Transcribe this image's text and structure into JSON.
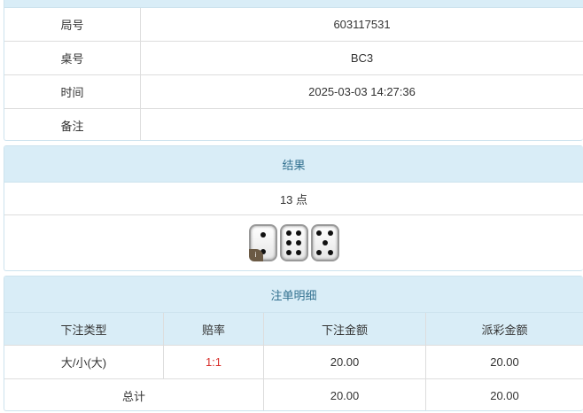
{
  "info": {
    "rows": [
      {
        "label": "局号",
        "value": "603117531"
      },
      {
        "label": "桌号",
        "value": "BC3"
      },
      {
        "label": "时间",
        "value": "2025-03-03 14:27:36"
      },
      {
        "label": "备注",
        "value": ""
      }
    ]
  },
  "result": {
    "title": "结果",
    "points": "13 点",
    "dice": [
      2,
      6,
      5
    ],
    "badge": "i"
  },
  "bets": {
    "title": "注单明细",
    "headers": [
      "下注类型",
      "赔率",
      "下注金额",
      "派彩金额"
    ],
    "rows": [
      {
        "type": "大/小(大)",
        "odds": "1:1",
        "amount": "20.00",
        "payout": "20.00"
      }
    ],
    "total": {
      "label": "总计",
      "amount": "20.00",
      "payout": "20.00"
    }
  },
  "colors": {
    "header_bg": "#d9edf7",
    "header_text": "#31708f",
    "odds": "#d9302c"
  }
}
